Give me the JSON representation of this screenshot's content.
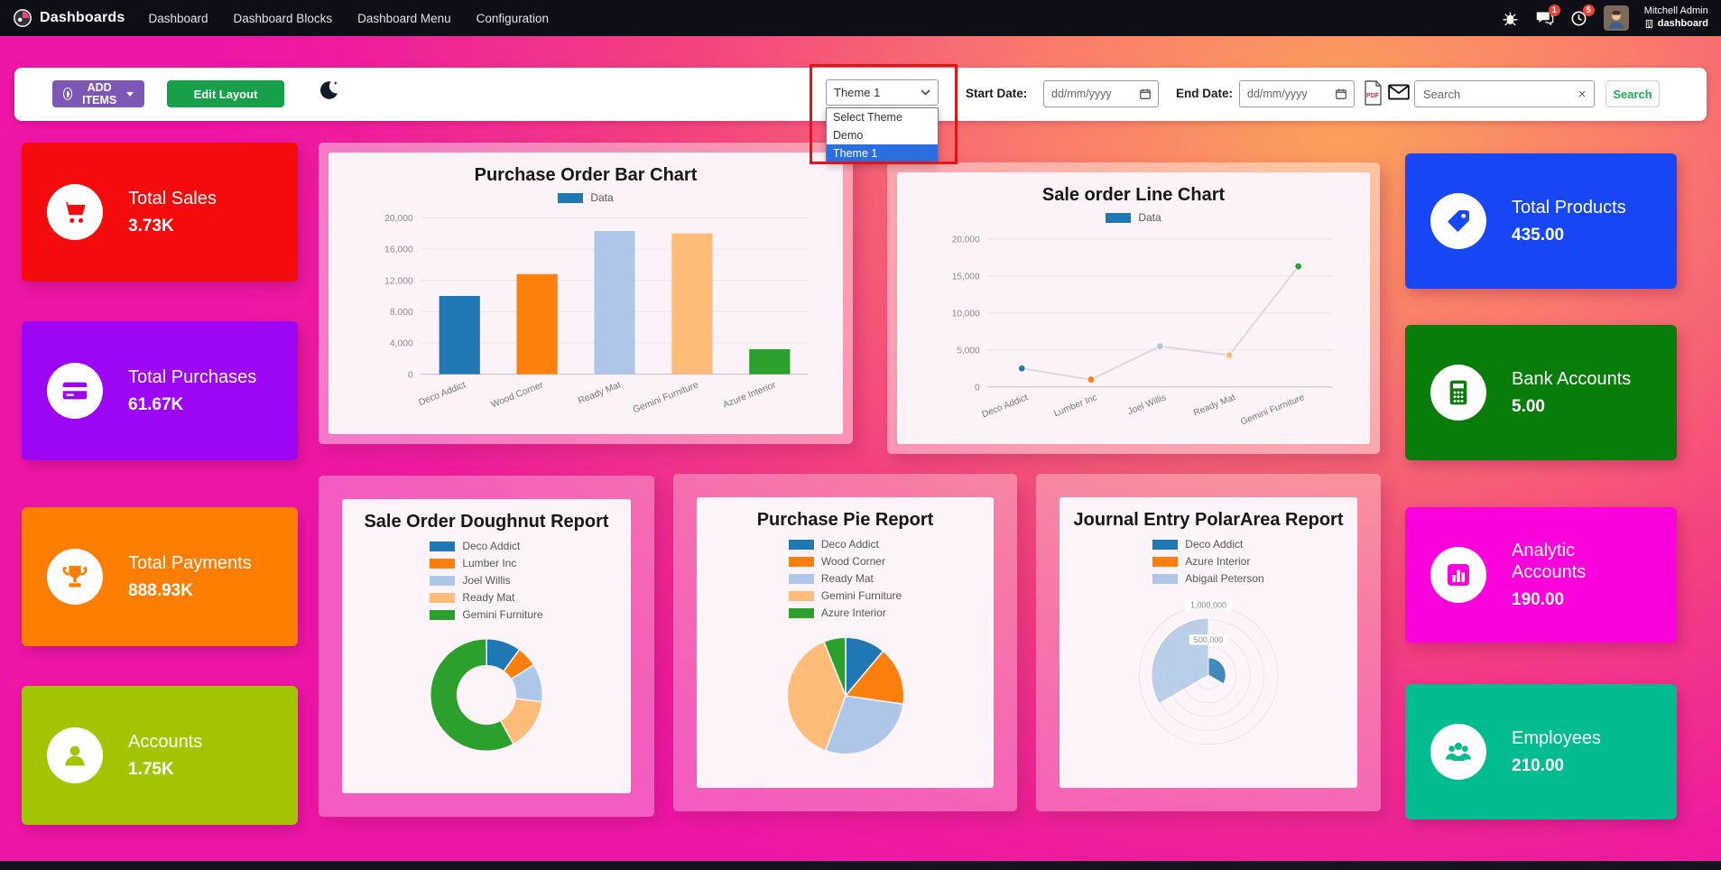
{
  "topbar": {
    "app_title": "Dashboards",
    "menu": [
      {
        "label": "Dashboard"
      },
      {
        "label": "Dashboard Blocks"
      },
      {
        "label": "Dashboard Menu"
      },
      {
        "label": "Configuration"
      }
    ],
    "messages_badge": "1",
    "activities_badge": "5",
    "user_name": "Mitchell Admin",
    "company_name": "dashboard"
  },
  "toolbar": {
    "add_items_label": "ADD ITEMS",
    "edit_layout_label": "Edit Layout",
    "theme_select": {
      "value": "Theme 1",
      "options": [
        "Select Theme",
        "Demo",
        "Theme 1"
      ],
      "selected_option": "Theme 1"
    },
    "start_date_label": "Start Date:",
    "end_date_label": "End Date:",
    "date_placeholder": "dd/mm/yyyy",
    "search_placeholder": "Search",
    "search_button_label": "Search"
  },
  "kpis_left": [
    {
      "label": "Total Sales",
      "value": "3.73K",
      "color": "#f40b0b",
      "icon": "cart-icon"
    },
    {
      "label": "Total Purchases",
      "value": "61.67K",
      "color": "#9d05f5",
      "icon": "credit-card-icon"
    },
    {
      "label": "Total Payments",
      "value": "888.93K",
      "color": "#ff7d01",
      "icon": "trophy-icon"
    },
    {
      "label": "Accounts",
      "value": "1.75K",
      "color": "#a3c501",
      "icon": "user-icon"
    }
  ],
  "kpis_right": [
    {
      "label": "Total Products",
      "value": "435.00",
      "color": "#1747f5",
      "icon": "tag-icon"
    },
    {
      "label": "Bank Accounts",
      "value": "5.00",
      "color": "#097d09",
      "icon": "calculator-icon"
    },
    {
      "label": "Analytic Accounts",
      "value": "190.00",
      "color": "#fb02dc",
      "icon": "bar-chart-icon"
    },
    {
      "label": "Employees",
      "value": "210.00",
      "color": "#00bc8f",
      "icon": "users-icon"
    }
  ],
  "chart_data": [
    {
      "type": "bar",
      "title": "Purchase Order Bar Chart",
      "legend": [
        {
          "label": "Data",
          "color": "#1f77b4"
        }
      ],
      "categories": [
        "Deco Addict",
        "Wood Corner",
        "Ready Mat",
        "Gemini Furniture",
        "Azure Interior"
      ],
      "values": [
        10000,
        12800,
        18300,
        18000,
        3200
      ],
      "colors": [
        "#1f77b4",
        "#ff7f0e",
        "#aec7e8",
        "#ffbb78",
        "#2ca02c"
      ],
      "ylim": [
        0,
        20000
      ],
      "ytick_step": 4000,
      "grid": true
    },
    {
      "type": "line",
      "title": "Sale order Line Chart",
      "legend": [
        {
          "label": "Data",
          "color": "#1f77b4"
        }
      ],
      "categories": [
        "Deco Addict",
        "Lumber Inc",
        "Joel Willis",
        "Ready Mat",
        "Gemini Furniture"
      ],
      "values": [
        2500,
        1000,
        5500,
        4300,
        16300
      ],
      "line_color": "#d9d9de",
      "point_colors": [
        "#1f77b4",
        "#ff7f0e",
        "#aec7e8",
        "#ffbb78",
        "#2ca02c"
      ],
      "ylim": [
        0,
        20000
      ],
      "ytick_step": 5000,
      "grid": true
    },
    {
      "type": "doughnut",
      "title": "Sale Order Doughnut Report",
      "labels": [
        "Deco Addict",
        "Lumber Inc",
        "Joel Willis",
        "Ready Mat",
        "Gemini Furniture"
      ],
      "values": [
        10,
        6,
        11,
        15,
        58
      ],
      "colors": [
        "#1f77b4",
        "#ff7f0e",
        "#aec7e8",
        "#ffbb78",
        "#2ca02c"
      ]
    },
    {
      "type": "pie",
      "title": "Purchase Pie Report",
      "labels": [
        "Deco Addict",
        "Wood Corner",
        "Ready Mat",
        "Gemini Furniture",
        "Azure Interior"
      ],
      "values": [
        11,
        16,
        28,
        38,
        6
      ],
      "colors": [
        "#1f77b4",
        "#ff7f0e",
        "#aec7e8",
        "#ffbb78",
        "#2ca02c"
      ]
    },
    {
      "type": "polarArea",
      "title": "Journal Entry PolarArea Report",
      "labels": [
        "Deco Addict",
        "Azure Interior",
        "Abigail Peterson"
      ],
      "values": [
        250000,
        20000,
        820000
      ],
      "rmax": 1000000,
      "ticks": [
        "500,000",
        "1,000,000"
      ],
      "colors": [
        "#1f77b4",
        "#ff7f0e",
        "#aec7e8"
      ]
    }
  ]
}
